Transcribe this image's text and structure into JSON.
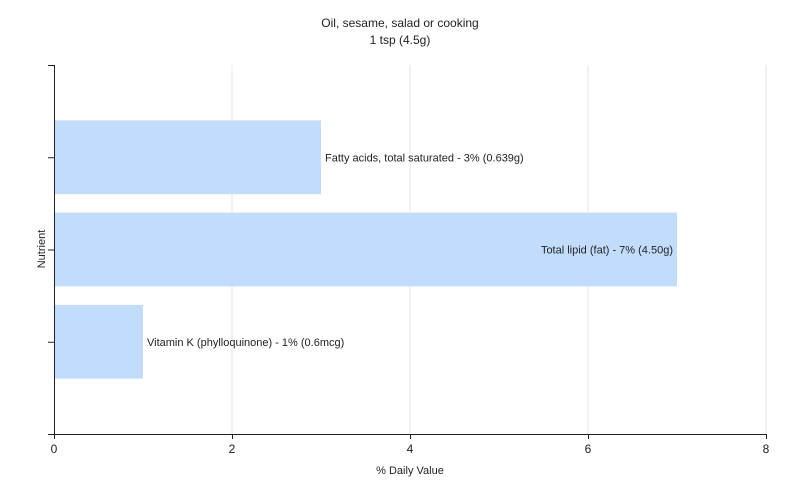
{
  "chart_data": {
    "type": "bar",
    "orientation": "horizontal",
    "title": "Oil, sesame, salad or cooking",
    "subtitle": "1 tsp (4.5g)",
    "xlabel": "% Daily Value",
    "ylabel": "Nutrient",
    "xlim": [
      0,
      8
    ],
    "xticks": [
      0,
      2,
      4,
      6,
      8
    ],
    "grid": true,
    "bar_color": "#c2dcfc",
    "categories": [
      "Fatty acids, total saturated",
      "Total lipid (fat)",
      "Vitamin K (phylloquinone)"
    ],
    "values": [
      3,
      7,
      1
    ],
    "data_labels": [
      "Fatty acids, total saturated - 3% (0.639g)",
      "Total lipid (fat) - 7% (4.50g)",
      "Vitamin K (phylloquinone) - 1% (0.6mcg)"
    ]
  }
}
